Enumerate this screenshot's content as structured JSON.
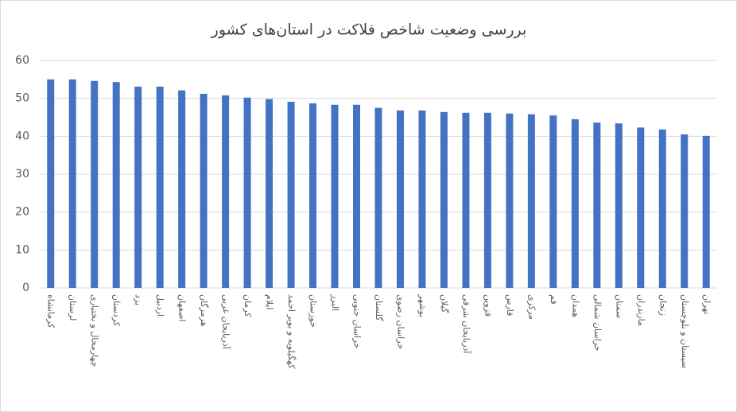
{
  "chart_data": {
    "type": "bar",
    "title": "بررسی وضعیت شاخص فلاکت در استان‌های کشور",
    "categories": [
      "کرمانشاه",
      "لرستان",
      "چهارمحال و بختیاری",
      "کردستان",
      "یزد",
      "اردبیل",
      "اصفهان",
      "هرمزگان",
      "آذربایجان غربی",
      "کرمان",
      "ایلام",
      "کهگیلویه و بویر احمد",
      "خوزستان",
      "البرز",
      "خراسان جنوبی",
      "گلستان",
      "خراسان رضوی",
      "بوشهر",
      "گیلان",
      "آذربایجان شرقی",
      "قزوین",
      "فارس",
      "مرکزی",
      "قم",
      "همدان",
      "خراسان شمالی",
      "سمنان",
      "مازندران",
      "زنجان",
      "سیستان و بلوچستان",
      "تهران"
    ],
    "values": [
      55,
      55,
      54.6,
      54.3,
      53.1,
      53.1,
      52.1,
      51.2,
      50.8,
      50.2,
      49.8,
      49.1,
      48.7,
      48.3,
      48.3,
      47.5,
      46.8,
      46.8,
      46.4,
      46.2,
      46.2,
      46,
      45.8,
      45.5,
      44.5,
      43.6,
      43.4,
      42.3,
      41.8,
      40.5,
      40.1
    ],
    "color": "#4472c4",
    "ylim": [
      0,
      60
    ],
    "yticks": [
      0,
      10,
      20,
      30,
      40,
      50,
      60
    ],
    "grid": true
  }
}
